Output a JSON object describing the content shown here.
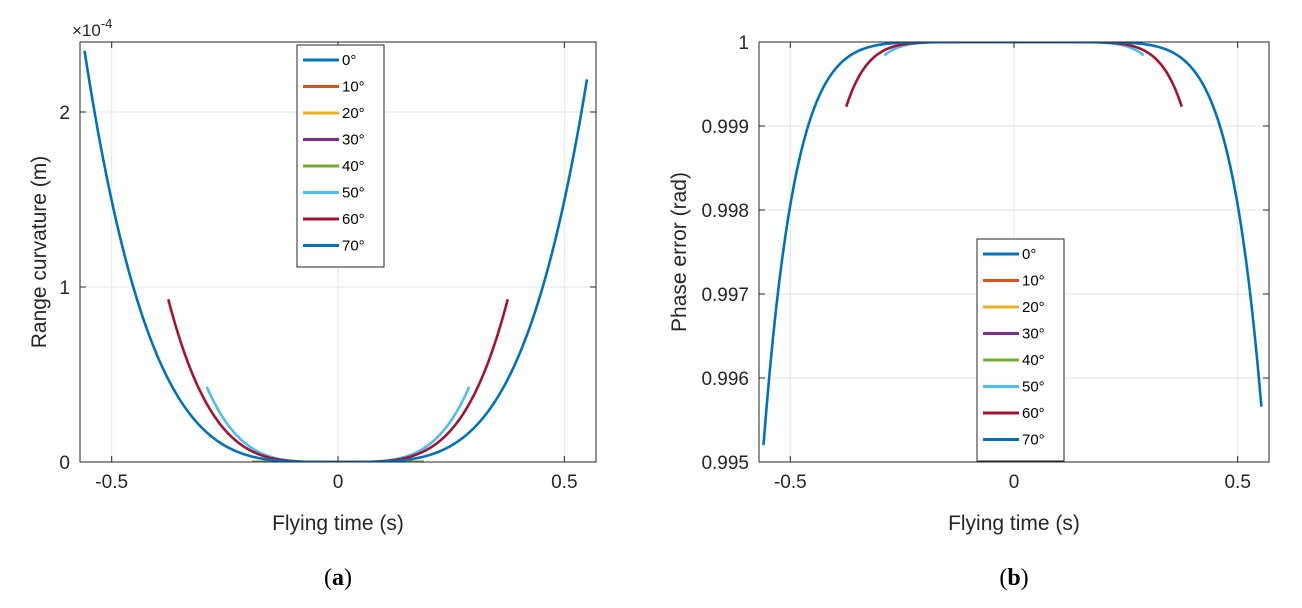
{
  "chart_data": [
    {
      "type": "line",
      "panel": "a",
      "caption_letter": "a",
      "xlabel": "Flying time (s)",
      "ylabel": "Range curvature (m)",
      "exponent_label": "×10",
      "exponent_power": "-4",
      "xlim": [
        -0.57,
        0.57
      ],
      "ylim": [
        0,
        2.4
      ],
      "y_unit_scale": "1e-4",
      "xticks": [
        -0.5,
        0,
        0.5
      ],
      "xtick_labels": [
        "-0.5",
        "0",
        "0.5"
      ],
      "yticks": [
        0,
        1,
        2
      ],
      "ytick_labels": [
        "0",
        "1",
        "2"
      ],
      "grid": true,
      "legend_position": "top-center",
      "series": [
        {
          "name": "0°",
          "color": "#0072BD",
          "x_range": [
            -0.005,
            0.005
          ],
          "amp": 0.0,
          "p": 4
        },
        {
          "name": "10°",
          "color": "#D95319",
          "x_range": [
            -0.19,
            0.19
          ],
          "amp": 0.0,
          "p": 4
        },
        {
          "name": "20°",
          "color": "#EDB120",
          "x_range": [
            -0.19,
            0.19
          ],
          "amp": 0.0,
          "p": 4
        },
        {
          "name": "30°",
          "color": "#7E2F8E",
          "x_range": [
            -0.19,
            0.19
          ],
          "amp": 0.0,
          "p": 4
        },
        {
          "name": "40°",
          "color": "#77AC30",
          "x_range": [
            -0.19,
            0.19
          ],
          "amp": 0.0,
          "p": 4
        },
        {
          "name": "50°",
          "color": "#4DBEEE",
          "x_range": [
            -0.29,
            0.29
          ],
          "amp": 0.43,
          "p": 4
        },
        {
          "name": "60°",
          "color": "#A2142F",
          "x_range": [
            -0.375,
            0.375
          ],
          "amp": 0.93,
          "p": 4
        },
        {
          "name": "70°",
          "color": "#0072BD",
          "x_range": [
            -0.56,
            0.55
          ],
          "amp": 2.35,
          "p": 4
        }
      ]
    },
    {
      "type": "line",
      "panel": "b",
      "caption_letter": "b",
      "xlabel": "Flying time (s)",
      "ylabel": "Phase error (rad)",
      "xlim": [
        -0.57,
        0.57
      ],
      "ylim": [
        0.995,
        1.0
      ],
      "xticks": [
        -0.5,
        0,
        0.5
      ],
      "xtick_labels": [
        "-0.5",
        "0",
        "0.5"
      ],
      "yticks": [
        0.995,
        0.996,
        0.997,
        0.998,
        0.999,
        1.0
      ],
      "ytick_labels": [
        "0.995",
        "0.996",
        "0.997",
        "0.998",
        "0.999",
        "1"
      ],
      "grid": true,
      "legend_position": "bottom-center",
      "series": [
        {
          "name": "0°",
          "color": "#0072BD",
          "x_range": [
            -0.005,
            0.005
          ],
          "drop": 0.0,
          "p": 8
        },
        {
          "name": "10°",
          "color": "#D95319",
          "x_range": [
            -0.19,
            0.19
          ],
          "drop": 0.0,
          "p": 8
        },
        {
          "name": "20°",
          "color": "#EDB120",
          "x_range": [
            -0.19,
            0.19
          ],
          "drop": 0.0,
          "p": 8
        },
        {
          "name": "30°",
          "color": "#7E2F8E",
          "x_range": [
            -0.19,
            0.19
          ],
          "drop": 0.0,
          "p": 8
        },
        {
          "name": "40°",
          "color": "#77AC30",
          "x_range": [
            -0.19,
            0.19
          ],
          "drop": 0.0,
          "p": 8
        },
        {
          "name": "50°",
          "color": "#4DBEEE",
          "x_range": [
            -0.29,
            0.29
          ],
          "drop": 0.00016,
          "p": 8
        },
        {
          "name": "60°",
          "color": "#A2142F",
          "x_range": [
            -0.375,
            0.375
          ],
          "drop": 0.00077,
          "p": 8
        },
        {
          "name": "70°",
          "color": "#0072BD",
          "x_range": [
            -0.56,
            0.553
          ],
          "drop": 0.0048,
          "p": 8
        }
      ]
    }
  ]
}
